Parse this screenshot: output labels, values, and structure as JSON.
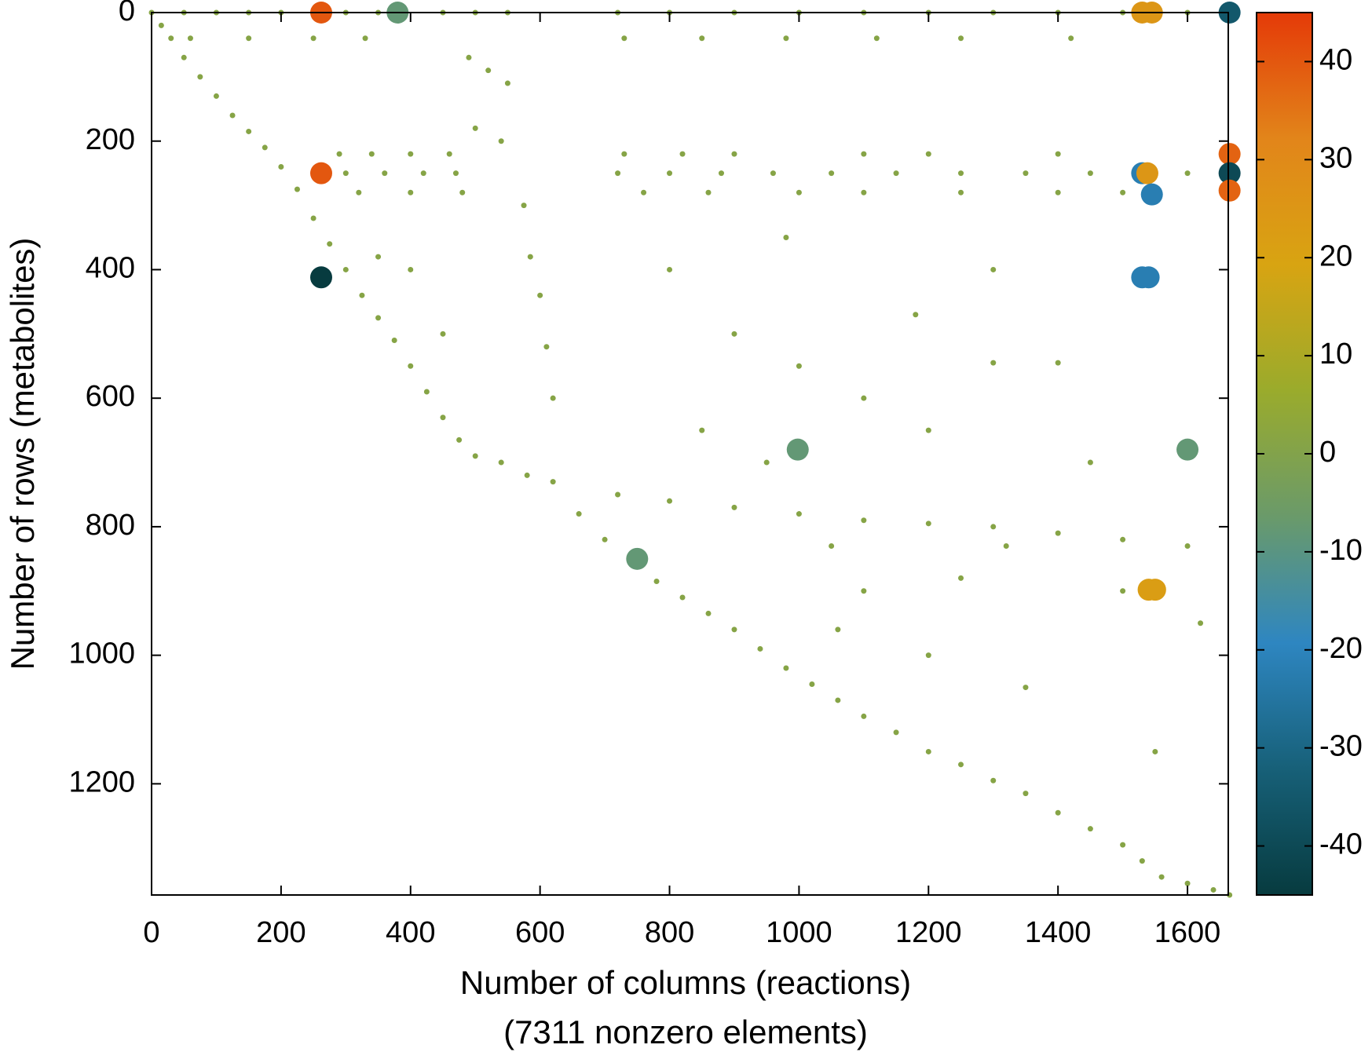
{
  "chart_data": {
    "type": "scatter",
    "xlabel": "Number of columns (reactions)",
    "xlabel2": "(7311 nonzero elements)",
    "ylabel": "Number of rows (metabolites)",
    "xlim": [
      0,
      1663
    ],
    "ylim": [
      1373,
      0
    ],
    "xticks": [
      0,
      200,
      400,
      600,
      800,
      1000,
      1200,
      1400,
      1600
    ],
    "yticks": [
      0,
      200,
      400,
      600,
      800,
      1000,
      1200
    ],
    "clim": [
      -45,
      45
    ],
    "cticks": [
      -40,
      -30,
      -20,
      -10,
      0,
      10,
      20,
      30,
      40
    ],
    "colormap": [
      "#073b3f",
      "#176078",
      "#2e86c1",
      "#6a9a6a",
      "#9aab2c",
      "#d8a412",
      "#e2851a",
      "#e43a08"
    ],
    "x": [
      0,
      15,
      30,
      50,
      75,
      100,
      125,
      150,
      175,
      200,
      225,
      250,
      275,
      300,
      325,
      350,
      375,
      400,
      425,
      450,
      475,
      500,
      540,
      580,
      620,
      660,
      700,
      740,
      780,
      820,
      860,
      900,
      940,
      980,
      1020,
      1060,
      1100,
      1150,
      1200,
      1250,
      1300,
      1350,
      1400,
      1450,
      1500,
      1530,
      1560,
      1600,
      1640,
      1665,
      490,
      520,
      550,
      500,
      540,
      575,
      585,
      600,
      610,
      620,
      50,
      100,
      150,
      300,
      350,
      450,
      500,
      550,
      720,
      800,
      900,
      1000,
      1100,
      1200,
      1300,
      1400,
      1500,
      1600,
      200,
      250,
      60,
      150,
      250,
      330,
      730,
      850,
      980,
      1120,
      1250,
      1420,
      290,
      340,
      400,
      460,
      730,
      820,
      900,
      1100,
      1200,
      1400,
      300,
      360,
      420,
      470,
      720,
      800,
      880,
      960,
      1050,
      1150,
      1250,
      1350,
      1450,
      1600,
      320,
      400,
      480,
      760,
      860,
      1000,
      1100,
      1250,
      1400,
      1500,
      720,
      800,
      900,
      1000,
      1100,
      1200,
      1300,
      1400,
      1500,
      1600,
      400,
      350,
      450,
      800,
      900,
      1000,
      1100,
      1200,
      1300,
      1400,
      1050,
      1320,
      1100,
      1200,
      1350,
      1500,
      1250,
      950,
      850,
      1450,
      1550,
      1620,
      1060,
      1180,
      1300,
      980,
      262,
      262,
      262,
      1530,
      1545,
      1665,
      1665,
      1665,
      1665,
      1530,
      1538,
      1545,
      1530,
      1540,
      1540,
      1550,
      1600,
      998,
      380,
      750
    ],
    "y": [
      0,
      20,
      40,
      70,
      100,
      130,
      160,
      185,
      210,
      240,
      275,
      320,
      360,
      400,
      440,
      475,
      510,
      550,
      590,
      630,
      665,
      690,
      700,
      720,
      730,
      780,
      820,
      850,
      885,
      910,
      935,
      960,
      990,
      1020,
      1045,
      1070,
      1095,
      1120,
      1150,
      1170,
      1195,
      1215,
      1245,
      1270,
      1295,
      1320,
      1345,
      1355,
      1365,
      1373,
      70,
      90,
      110,
      180,
      200,
      300,
      380,
      440,
      520,
      600,
      0,
      0,
      0,
      0,
      0,
      0,
      0,
      0,
      0,
      0,
      0,
      0,
      0,
      0,
      0,
      0,
      0,
      0,
      0,
      0,
      40,
      40,
      40,
      40,
      40,
      40,
      40,
      40,
      40,
      40,
      220,
      220,
      220,
      220,
      220,
      220,
      220,
      220,
      220,
      220,
      250,
      250,
      250,
      250,
      250,
      250,
      250,
      250,
      250,
      250,
      250,
      250,
      250,
      250,
      280,
      280,
      280,
      280,
      280,
      280,
      280,
      280,
      280,
      280,
      750,
      760,
      770,
      780,
      790,
      795,
      800,
      810,
      820,
      830,
      400,
      380,
      500,
      400,
      500,
      550,
      600,
      650,
      545,
      545,
      830,
      830,
      900,
      1000,
      1050,
      900,
      880,
      700,
      650,
      700,
      1150,
      950,
      960,
      470,
      400,
      350,
      0,
      250,
      412,
      0,
      0,
      0,
      220,
      250,
      277,
      250,
      250,
      283,
      412,
      412,
      898,
      898,
      680,
      680,
      0,
      850
    ],
    "c": [
      1,
      1,
      1,
      1,
      1,
      1,
      1,
      1,
      1,
      1,
      1,
      1,
      1,
      1,
      1,
      1,
      1,
      1,
      1,
      1,
      1,
      1,
      1,
      1,
      1,
      1,
      1,
      1,
      1,
      1,
      1,
      1,
      1,
      1,
      1,
      1,
      1,
      1,
      1,
      1,
      1,
      1,
      1,
      1,
      1,
      1,
      1,
      1,
      1,
      1,
      1,
      1,
      1,
      1,
      1,
      1,
      1,
      1,
      1,
      1,
      1,
      1,
      1,
      1,
      1,
      1,
      1,
      1,
      1,
      1,
      1,
      1,
      1,
      1,
      1,
      1,
      1,
      1,
      1,
      1,
      1,
      1,
      1,
      1,
      1,
      1,
      1,
      1,
      1,
      1,
      1,
      1,
      1,
      1,
      1,
      1,
      1,
      1,
      1,
      1,
      1,
      1,
      1,
      1,
      1,
      1,
      1,
      1,
      1,
      1,
      1,
      1,
      1,
      1,
      1,
      1,
      1,
      1,
      1,
      1,
      1,
      1,
      1,
      1,
      1,
      1,
      1,
      1,
      1,
      1,
      1,
      1,
      1,
      1,
      1,
      1,
      1,
      1,
      1,
      1,
      1,
      1,
      1,
      1,
      1,
      1,
      1,
      1,
      1,
      1,
      1,
      1,
      1,
      1,
      1,
      1,
      1,
      1,
      1,
      1,
      40,
      40,
      -45,
      25,
      25,
      -35,
      38,
      -40,
      38,
      -22,
      25,
      -22,
      -22,
      -22,
      22,
      22,
      -8,
      -8,
      -8,
      -8
    ]
  }
}
